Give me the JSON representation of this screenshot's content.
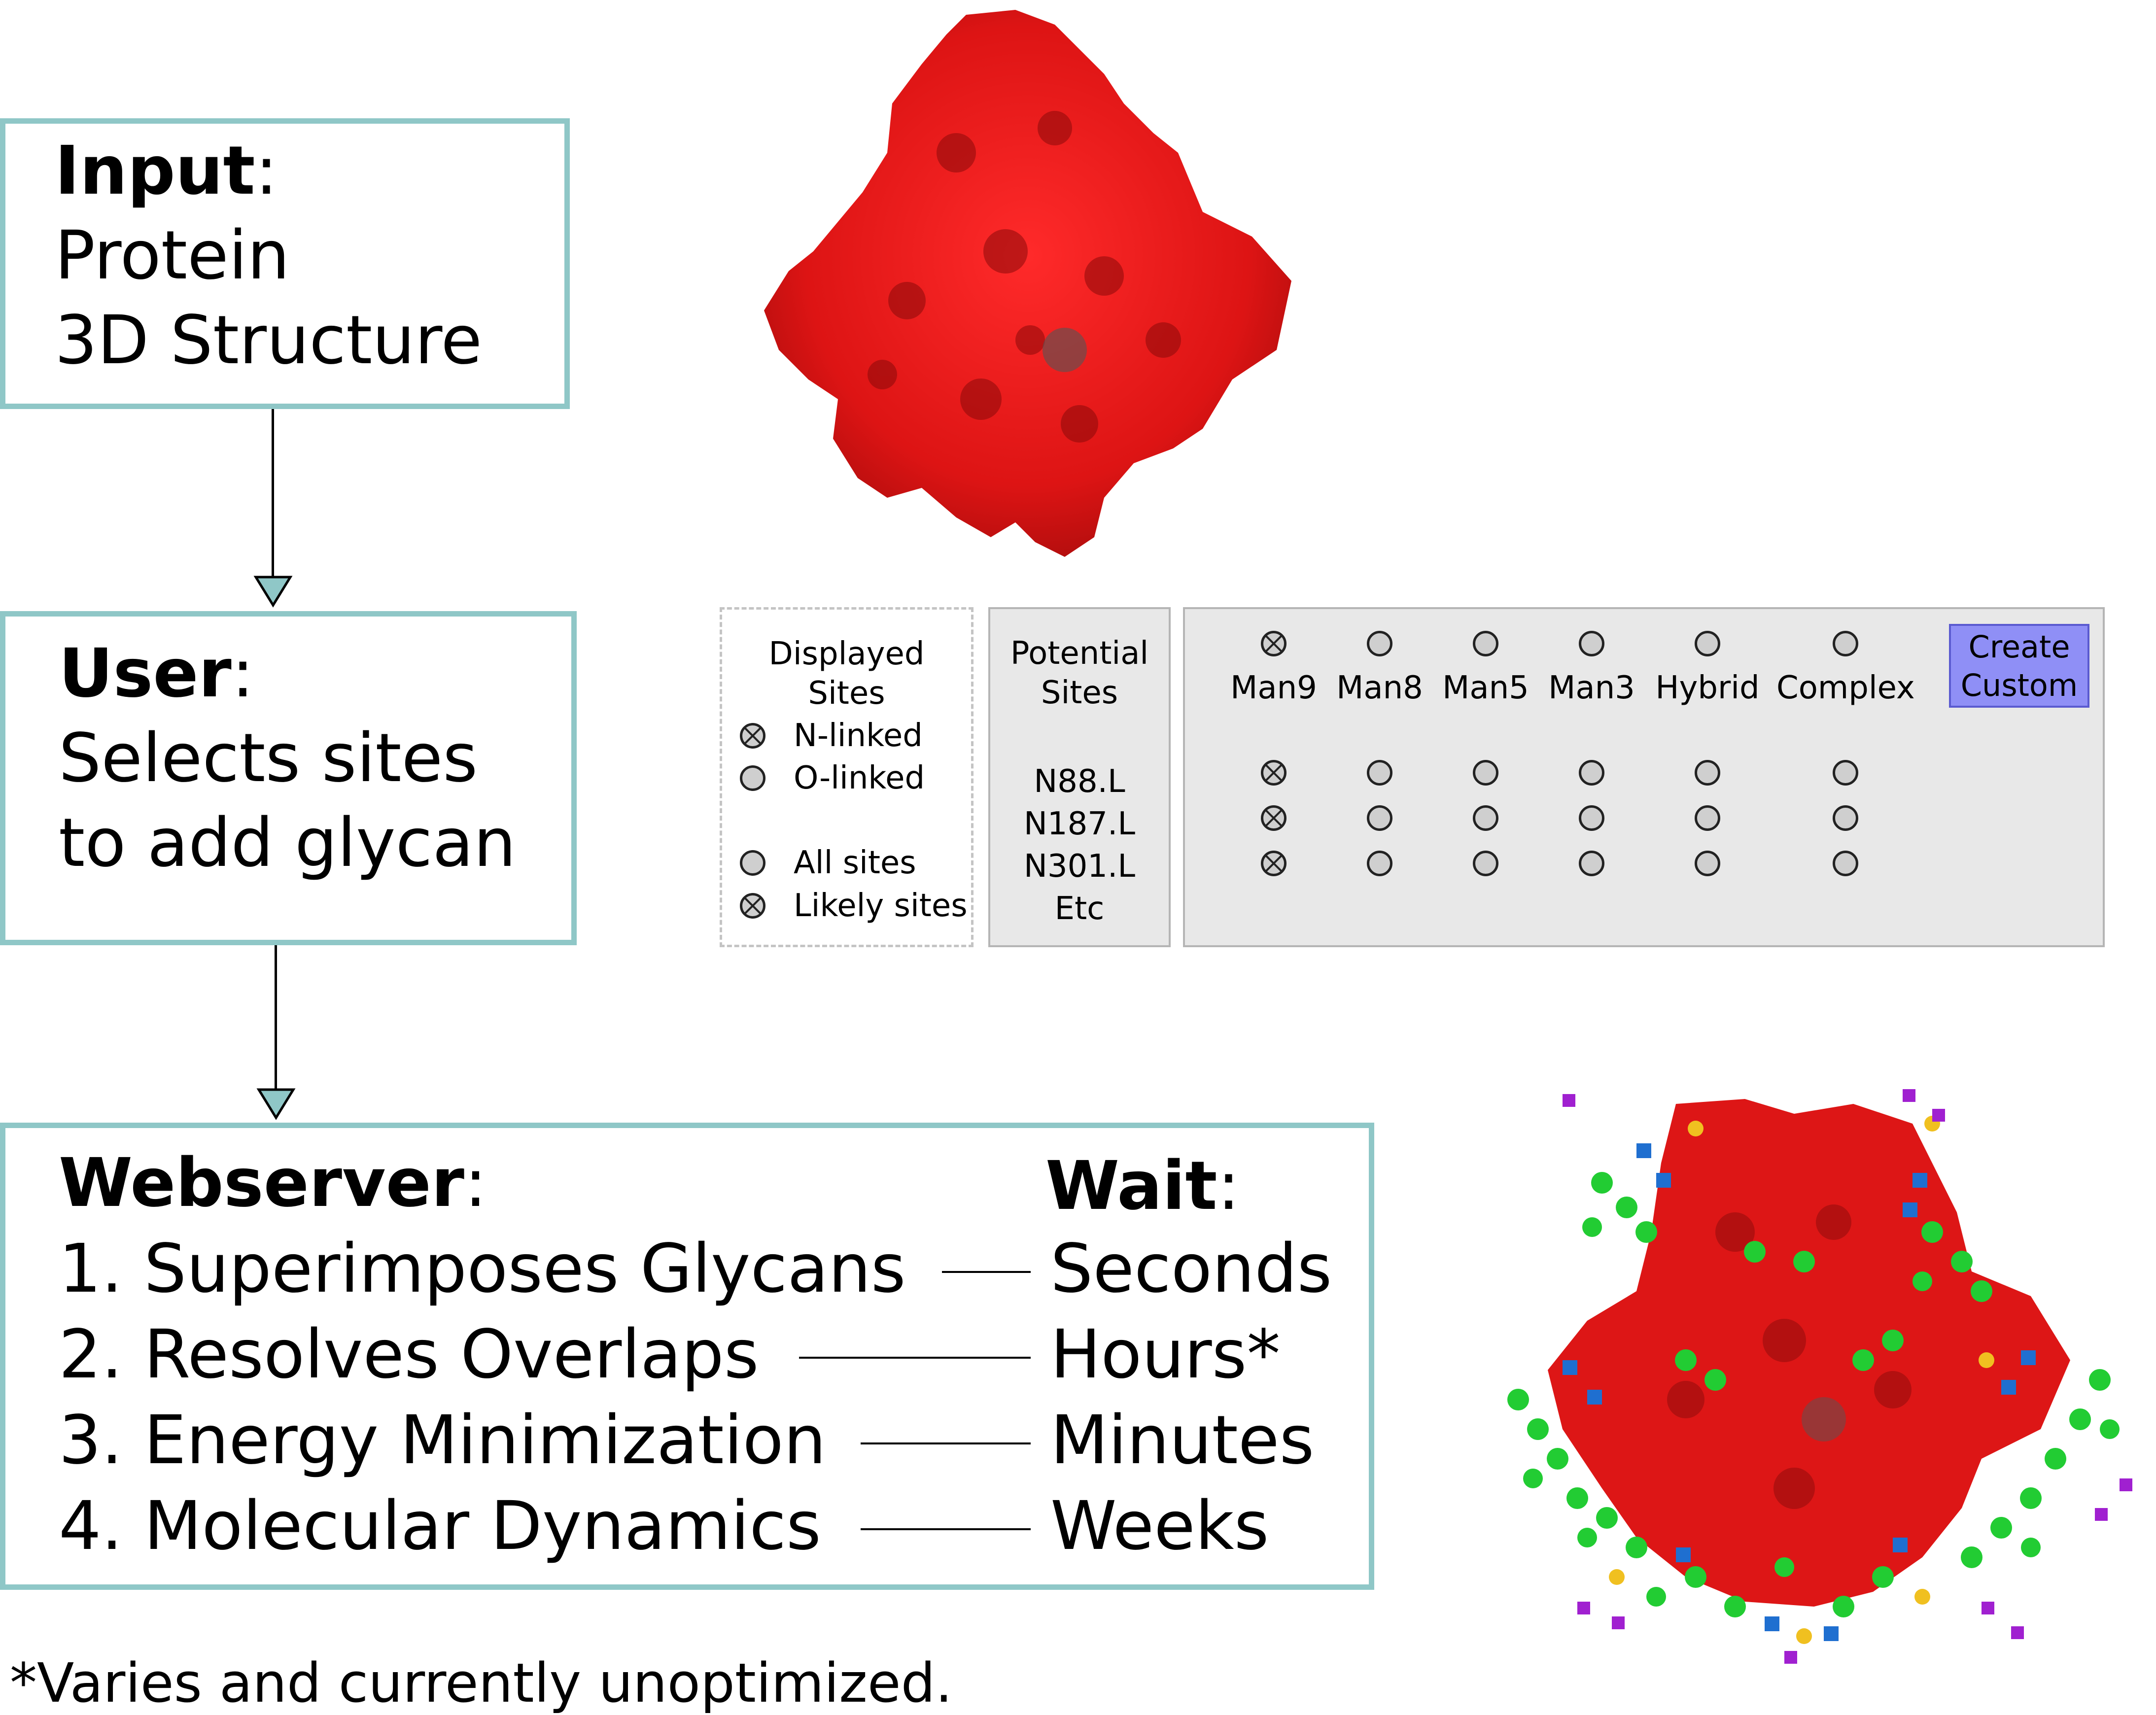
{
  "steps": {
    "input": {
      "heading": "Input",
      "lines": [
        "Protein",
        "3D Structure"
      ]
    },
    "user": {
      "heading": "User",
      "lines": [
        "Selects sites",
        "to add glycan"
      ]
    },
    "webserver": {
      "heading": "Webserver",
      "wait_heading": "Wait",
      "tasks": [
        {
          "label": "1. Superimposes Glycans",
          "wait": "Seconds"
        },
        {
          "label": "2. Resolves Overlaps",
          "wait": "Hours*"
        },
        {
          "label": "3. Energy Minimization",
          "wait": "Minutes"
        },
        {
          "label": "4. Molecular Dynamics",
          "wait": "Weeks"
        }
      ]
    }
  },
  "footnote": "*Varies and currently unoptimized.",
  "ui_mock": {
    "displayed_sites": {
      "title_line1": "Displayed",
      "title_line2": "Sites",
      "options": [
        {
          "label": "N-linked",
          "selected": true
        },
        {
          "label": "O-linked",
          "selected": false
        },
        {
          "label": "All sites",
          "selected": false
        },
        {
          "label": "Likely sites",
          "selected": true
        }
      ]
    },
    "potential_sites": {
      "title_line1": "Potential",
      "title_line2": "Sites",
      "sites": [
        "N88.L",
        "N187.L",
        "N301.L",
        "Etc"
      ]
    },
    "glycan_types": [
      "Man9",
      "Man8",
      "Man5",
      "Man3",
      "Hybrid",
      "Complex"
    ],
    "header_selected_index": 0,
    "row_selected_index": [
      0,
      0,
      0
    ],
    "create_button": {
      "line1": "Create",
      "line2": "Custom"
    }
  },
  "colors": {
    "box_border": "#8fc7c7",
    "protein": "#e01818",
    "glycan_green": "#22cc33",
    "glycan_blue": "#1f6fd0",
    "glycan_yellow": "#f0c020",
    "glycan_purple": "#a020d0",
    "button": "#8f8ff6"
  },
  "icons": [
    "protein-structure",
    "glycosylated-protein-structure"
  ]
}
